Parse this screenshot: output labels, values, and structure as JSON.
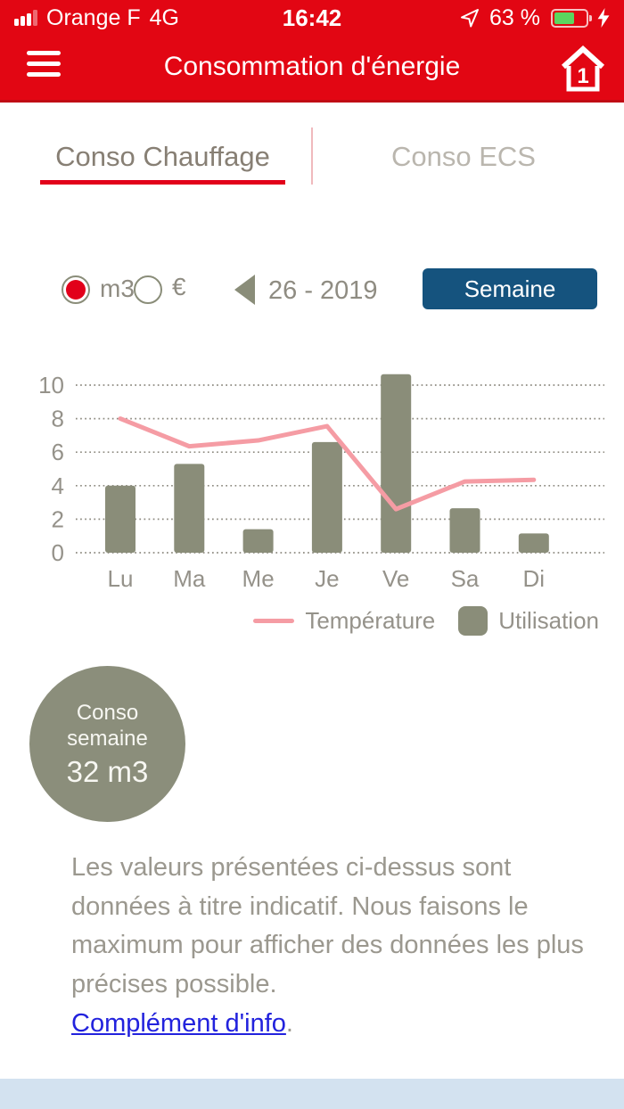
{
  "status_bar": {
    "carrier": "Orange F",
    "network": "4G",
    "time": "16:42",
    "battery_percent": "63 %"
  },
  "header": {
    "title": "Consommation d'énergie",
    "home_badge": "1"
  },
  "tabs": [
    {
      "label": "Conso Chauffage",
      "active": true
    },
    {
      "label": "Conso ECS",
      "active": false
    }
  ],
  "controls": {
    "unit_options": [
      {
        "label": "m3",
        "selected": true
      },
      {
        "label": "€",
        "selected": false
      }
    ],
    "period_label": "26 - 2019",
    "period_button": "Semaine"
  },
  "chart_data": {
    "type": "bar",
    "categories": [
      "Lu",
      "Ma",
      "Me",
      "Je",
      "Ve",
      "Sa",
      "Di"
    ],
    "series": [
      {
        "name": "Utilisation",
        "type": "bar",
        "color": "#8a8d79",
        "values": [
          4.0,
          5.3,
          1.4,
          6.6,
          10.65,
          2.65,
          1.15
        ]
      },
      {
        "name": "Température",
        "type": "line",
        "color": "#f59ca4",
        "values": [
          8.0,
          6.35,
          6.7,
          7.55,
          2.6,
          4.25,
          4.35
        ]
      }
    ],
    "title": "",
    "xlabel": "",
    "ylabel": "",
    "ylim": [
      0,
      10
    ],
    "yticks": [
      0,
      2,
      4,
      6,
      8,
      10
    ],
    "grid": "horizontal-dotted",
    "legend_position": "bottom-right"
  },
  "summary_circle": {
    "line1": "Conso",
    "line2": "semaine",
    "value": "32 m3"
  },
  "disclaimer": {
    "text": "Les valeurs présentées ci-dessus sont données à titre indicatif. Nous faisons le maximum pour afficher des données les plus précises possible.",
    "link": "Complément d'info",
    "after_link": "."
  },
  "colors": {
    "header_red": "#e20613",
    "accent_red": "#e2001a",
    "button_blue": "#15537e",
    "bar_olive": "#8a8d79",
    "line_pink": "#f59ca4",
    "link_blue": "#2222dd",
    "battery_green": "#5bd65f",
    "bottom_bar_blue": "#d3e2f0"
  }
}
